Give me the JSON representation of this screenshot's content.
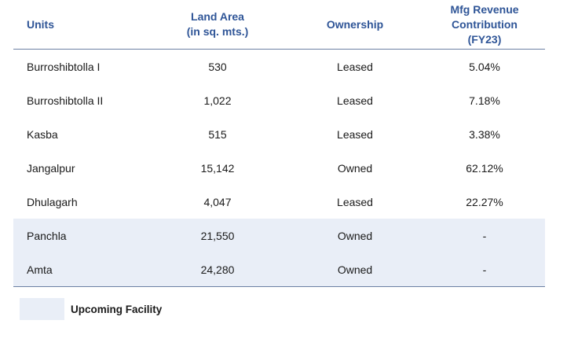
{
  "headers": {
    "units": "Units",
    "land_area": "Land Area\n(in sq. mts.)",
    "ownership": "Ownership",
    "revenue": "Mfg Revenue\nContribution\n(FY23)"
  },
  "rows": [
    {
      "unit": "Burroshibtolla I",
      "area": "530",
      "ownership": "Leased",
      "revenue": "5.04%",
      "upcoming": false
    },
    {
      "unit": "Burroshibtolla II",
      "area": "1,022",
      "ownership": "Leased",
      "revenue": "7.18%",
      "upcoming": false
    },
    {
      "unit": "Kasba",
      "area": "515",
      "ownership": "Leased",
      "revenue": "3.38%",
      "upcoming": false
    },
    {
      "unit": "Jangalpur",
      "area": "15,142",
      "ownership": "Owned",
      "revenue": "62.12%",
      "upcoming": false
    },
    {
      "unit": "Dhulagarh",
      "area": "4,047",
      "ownership": "Leased",
      "revenue": "22.27%",
      "upcoming": false
    },
    {
      "unit": "Panchla",
      "area": "21,550",
      "ownership": "Owned",
      "revenue": "-",
      "upcoming": true
    },
    {
      "unit": "Amta",
      "area": "24,280",
      "ownership": "Owned",
      "revenue": "-",
      "upcoming": true
    }
  ],
  "legend": {
    "label": "Upcoming Facility",
    "color": "#e9eef7"
  },
  "colors": {
    "header_text": "#2f5597",
    "rule": "#6b7fa3",
    "upcoming_fill": "#e9eef7"
  }
}
